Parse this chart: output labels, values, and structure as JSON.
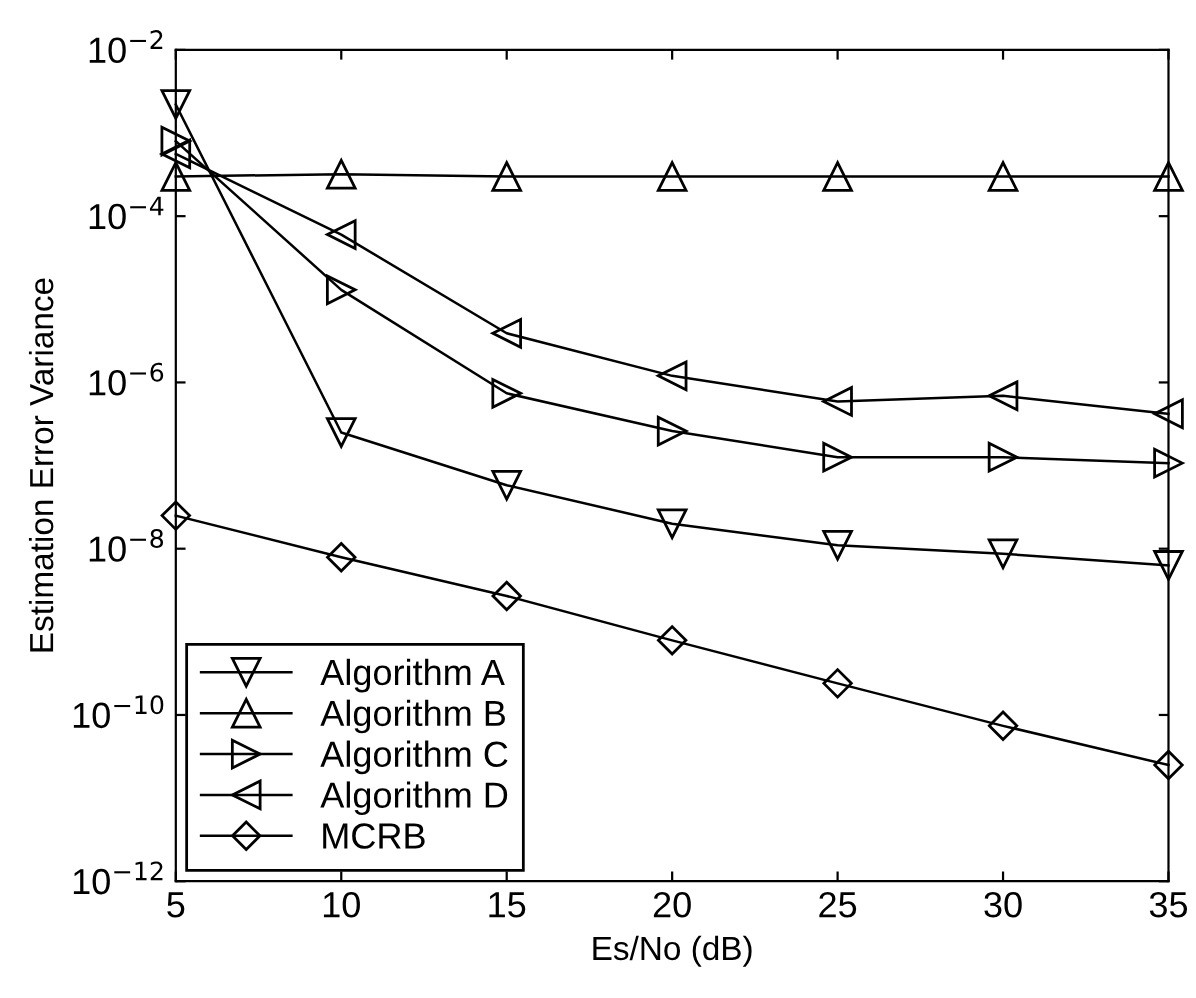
{
  "chart_data": {
    "type": "line",
    "xlabel": "Es/No (dB)",
    "ylabel": "Estimation Error Variance",
    "log": "y",
    "x": [
      5,
      10,
      15,
      20,
      25,
      30,
      35
    ],
    "xlim": [
      5,
      35
    ],
    "xticks": [
      5,
      10,
      15,
      20,
      25,
      30,
      35
    ],
    "ylim": [
      1e-12,
      0.01
    ],
    "yticks": [
      {
        "value": 1e-12,
        "label": "10$^{−12}$"
      },
      {
        "value": 1e-10,
        "label": "10$^{−10}$"
      },
      {
        "value": 1e-08,
        "label": "10$^{−8}$"
      },
      {
        "value": 1e-06,
        "label": "10$^{−6}$"
      },
      {
        "value": 0.0001,
        "label": "10$^{−4}$"
      },
      {
        "value": 0.01,
        "label": "10$^{−2}$"
      }
    ],
    "grid": false,
    "legend": "bottom left",
    "line_style": "solid",
    "series": [
      {
        "name": "Algorithm A",
        "color": "#000000",
        "marker": "triangle_down",
        "values": [
          0.0022,
          2.5e-07,
          5.8e-08,
          2e-08,
          1.1e-08,
          8.7e-09,
          6.3e-09
        ]
      },
      {
        "name": "Algorithm B",
        "color": "#000000",
        "marker": "triangle",
        "values": [
          0.0003,
          0.00032,
          0.0003,
          0.0003,
          0.0003,
          0.0003,
          0.0003
        ]
      },
      {
        "name": "Algorithm C",
        "color": "#000000",
        "marker": "triangle_right",
        "values": [
          0.0008,
          1.3e-05,
          7.4e-07,
          2.6e-07,
          1.26e-07,
          1.26e-07,
          1.07e-07
        ]
      },
      {
        "name": "Algorithm D",
        "color": "#000000",
        "marker": "triangle_left",
        "values": [
          0.00056,
          6e-05,
          3.9e-06,
          1.2e-06,
          5.9e-07,
          6.9e-07,
          4.2e-07
        ]
      },
      {
        "name": "MCRB",
        "color": "#000000",
        "marker": "diamond",
        "values": [
          2.5e-08,
          7.9e-09,
          2.7e-09,
          7.9e-10,
          2.4e-10,
          7.4e-11,
          2.5e-11
        ]
      }
    ]
  }
}
